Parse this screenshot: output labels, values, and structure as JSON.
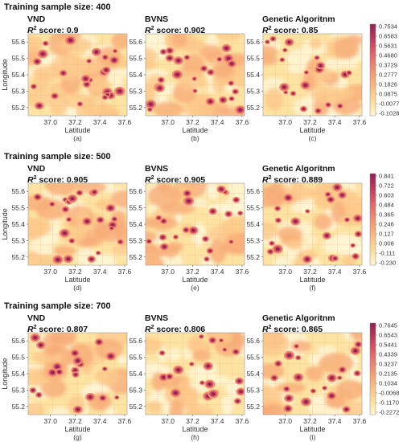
{
  "chart_data": {
    "type": "heatmap",
    "rows": [
      {
        "heading": "Training sample size: 400",
        "colorbar": [
          "0.7534",
          "0.6583",
          "0.5631",
          "0.4680",
          "0.3729",
          "0.2777",
          "0.1826",
          "0.0875",
          "-0.0077",
          "-0.1028"
        ],
        "panels": [
          {
            "method": "VND",
            "score": "0.9",
            "caption": "(a)",
            "density": 0.55
          },
          {
            "method": "BVNS",
            "score": "0.902",
            "caption": "(b)",
            "density": 0.6
          },
          {
            "method": "Genetic Algoritnm",
            "score": "0.85",
            "caption": "(c)",
            "density": 0.3
          }
        ]
      },
      {
        "heading": "Training sample size: 500",
        "colorbar": [
          "0.841",
          "0.722",
          "0.603",
          "0.484",
          "0.365",
          "0.246",
          "0.127",
          "0.008",
          "-0.111",
          "-0.230"
        ],
        "panels": [
          {
            "method": "VND",
            "score": "0.905",
            "caption": "(d)",
            "density": 0.5
          },
          {
            "method": "BVNS",
            "score": "0.905",
            "caption": "(e)",
            "density": 0.4
          },
          {
            "method": "Genetic Algoritnm",
            "score": "0.889",
            "caption": "(f)",
            "density": 0.42
          }
        ]
      },
      {
        "heading": "Training sample size: 700",
        "colorbar": [
          "0.7645",
          "0.6543",
          "0.5441",
          "0.4339",
          "0.3237",
          "0.2135",
          "0.1034",
          "-0.0068",
          "-0.1170",
          "-0.2272"
        ],
        "panels": [
          {
            "method": "VND",
            "score": "0.807",
            "caption": "(g)",
            "density": 0.35
          },
          {
            "method": "BVNS",
            "score": "0.806",
            "caption": "(h)",
            "density": 0.38
          },
          {
            "method": "Genetic Algoritnm",
            "score": "0.865",
            "caption": "(i)",
            "density": 0.36
          }
        ]
      }
    ],
    "score_label": "score:",
    "score_symbol": "R",
    "score_exponent": "2",
    "xlabel": "Latitude",
    "ylabel": "Longitude",
    "xticks": [
      "37.0",
      "37.2",
      "37.4",
      "37.6"
    ],
    "xtick_values": [
      37.0,
      37.2,
      37.4,
      37.6
    ],
    "yticks": [
      "55.2",
      "55.3",
      "55.4",
      "55.5",
      "55.6"
    ],
    "ytick_values": [
      55.2,
      55.3,
      55.4,
      55.5,
      55.6
    ],
    "xlim": [
      36.82,
      37.62
    ],
    "ylim": [
      55.15,
      55.65
    ],
    "colormap": [
      "#fff6d5",
      "#fde3a2",
      "#fcc98a",
      "#f8ad78",
      "#f29070",
      "#e7706a",
      "#d24f63",
      "#b3345c",
      "#8f2254"
    ]
  }
}
